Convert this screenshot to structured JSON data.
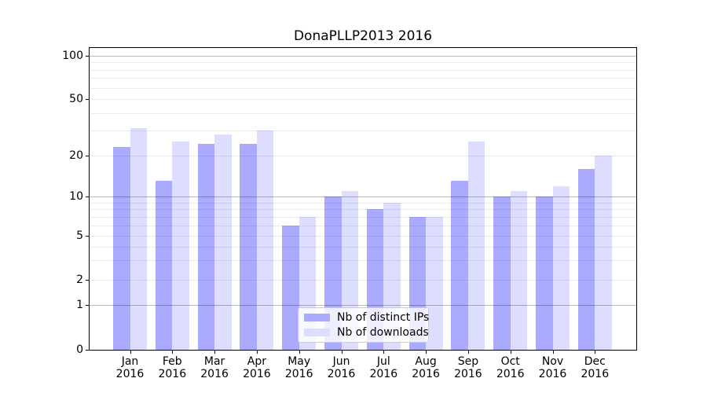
{
  "chart_data": {
    "type": "bar",
    "title": "DonaPLLP2013 2016",
    "categories": [
      "Jan",
      "Feb",
      "Mar",
      "Apr",
      "May",
      "Jun",
      "Jul",
      "Aug",
      "Sep",
      "Oct",
      "Nov",
      "Dec"
    ],
    "year_label": "2016",
    "series": [
      {
        "name": "Nb of distinct IPs",
        "color": "#aaaaff",
        "values": [
          23,
          13,
          24,
          24,
          6,
          10,
          8,
          7,
          13,
          10,
          10,
          16
        ]
      },
      {
        "name": "Nb of downloads",
        "color": "#ddddff",
        "values": [
          31,
          25,
          28,
          30,
          7,
          11,
          9,
          7,
          25,
          11,
          12,
          20
        ]
      }
    ],
    "y_axis": {
      "scale": "symlog",
      "ylim": [
        0,
        113
      ],
      "tick_values": [
        100,
        50,
        20,
        10,
        5,
        2,
        1,
        0
      ],
      "major_gridlines": [
        1,
        10,
        100
      ],
      "minor_gridlines": [
        2,
        3,
        4,
        5,
        6,
        7,
        8,
        9,
        20,
        30,
        40,
        50,
        60,
        70,
        80,
        90
      ]
    },
    "legend": {
      "position": "lower center",
      "entries": [
        "Nb of distinct IPs",
        "Nb of downloads"
      ]
    },
    "grid": true
  }
}
